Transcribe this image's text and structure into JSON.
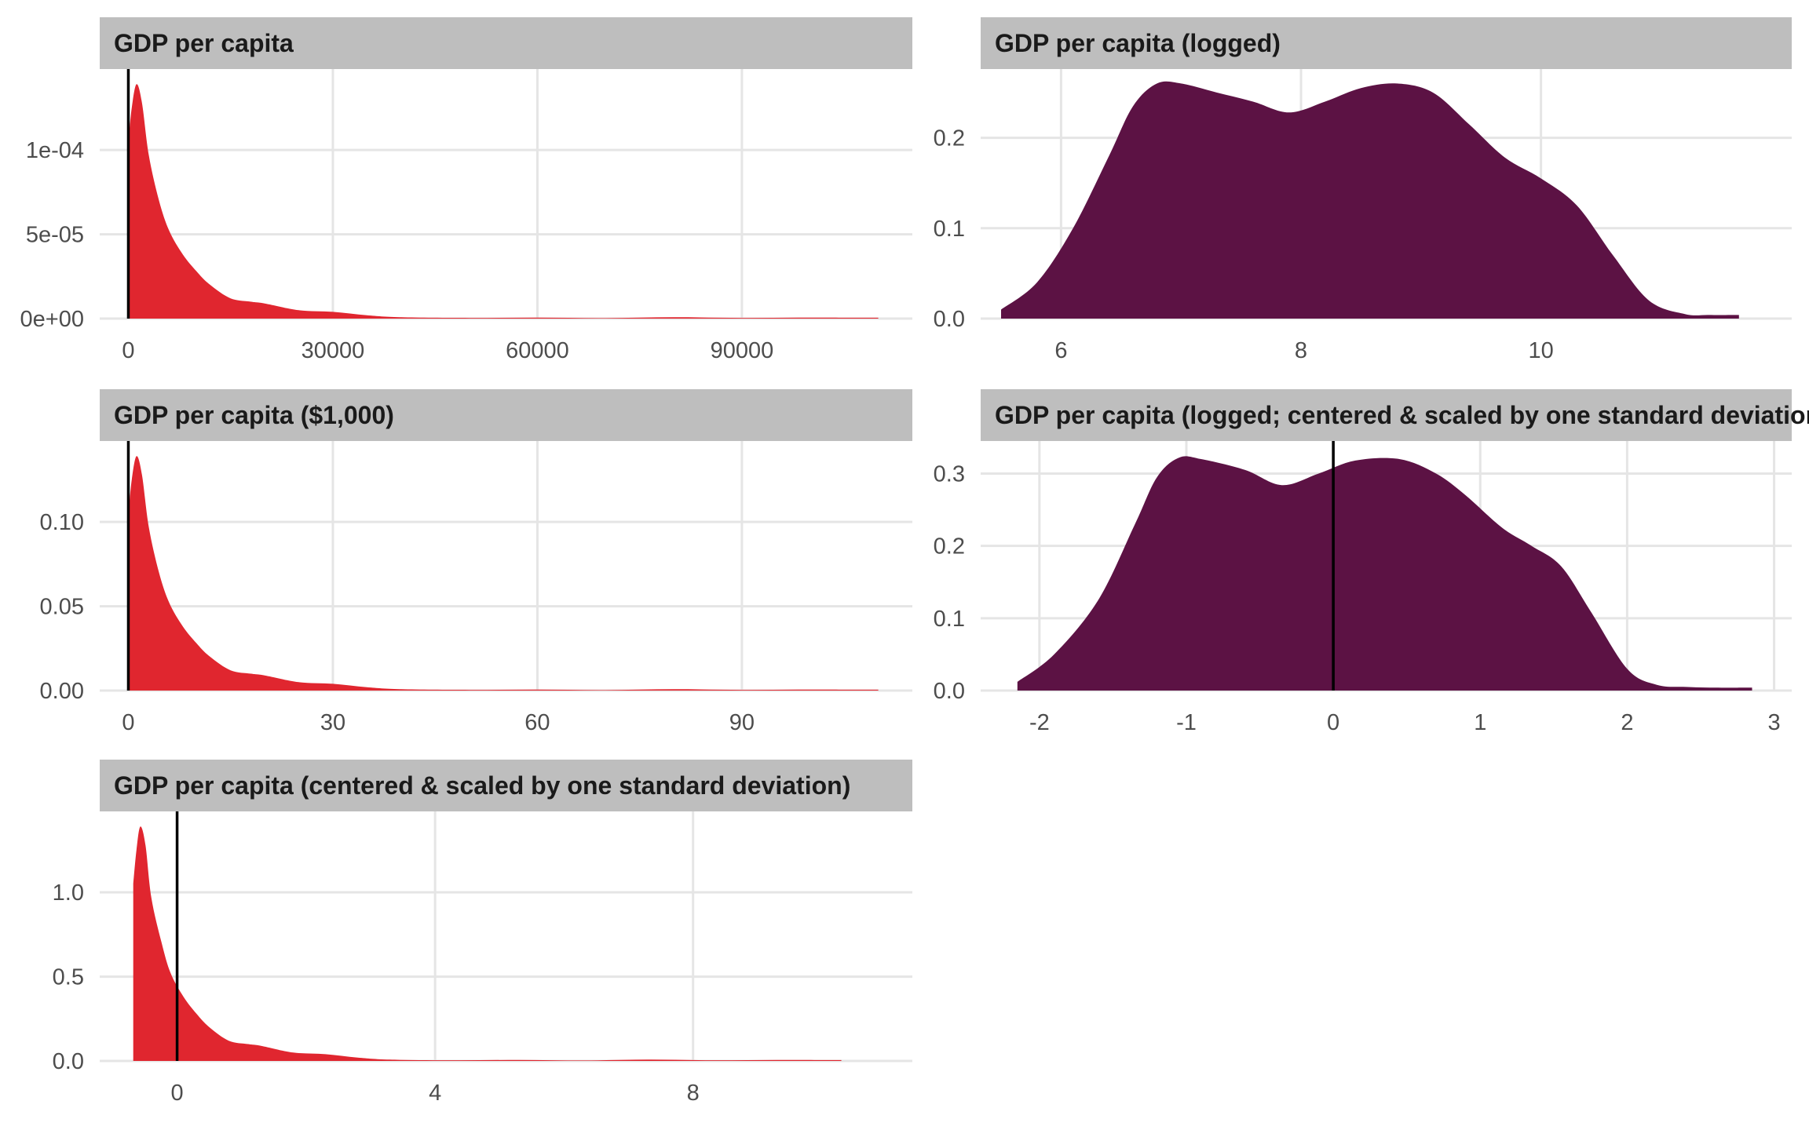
{
  "chart_data": [
    {
      "type": "area",
      "title": "GDP per capita",
      "color": "#e0262f",
      "xlim": [
        -4200,
        115000
      ],
      "ylim": [
        0,
        0.000148
      ],
      "x_ticks": [
        0,
        30000,
        60000,
        90000
      ],
      "x_tick_labels": [
        "0",
        "30000",
        "60000",
        "90000"
      ],
      "y_ticks": [
        0,
        5e-05,
        0.0001
      ],
      "y_tick_labels": [
        "0e+00",
        "5e-05",
        "1e-04"
      ],
      "vline": 0,
      "x": [
        0,
        500,
        1200,
        2000,
        3000,
        4500,
        6000,
        8000,
        10000,
        12000,
        15000,
        18000,
        20000,
        25000,
        30000,
        35000,
        40000,
        50000,
        60000,
        70000,
        80000,
        90000,
        100000,
        110000
      ],
      "y": [
        0.000105,
        0.000125,
        0.000139,
        0.000128,
        9.7e-05,
        7e-05,
        5.2e-05,
        3.8e-05,
        2.8e-05,
        2e-05,
        1.2e-05,
        1e-05,
        9e-06,
        5e-06,
        4e-06,
        2e-06,
        8e-07,
        4e-07,
        6e-07,
        3e-07,
        8e-07,
        4e-07,
        6e-07,
        5e-07
      ]
    },
    {
      "type": "area",
      "title": "GDP per capita (logged)",
      "color": "#5c1244",
      "xlim": [
        5.33,
        12.09
      ],
      "ylim": [
        0,
        0.276
      ],
      "x_ticks": [
        6,
        8,
        10
      ],
      "x_tick_labels": [
        "6",
        "8",
        "10"
      ],
      "y_ticks": [
        0,
        0.1,
        0.2
      ],
      "y_tick_labels": [
        "0.0",
        "0.1",
        "0.2"
      ],
      "x": [
        5.5,
        5.8,
        6.1,
        6.4,
        6.6,
        6.8,
        7.0,
        7.3,
        7.6,
        7.9,
        8.2,
        8.5,
        8.8,
        9.1,
        9.4,
        9.7,
        10.0,
        10.3,
        10.6,
        10.9,
        11.2,
        11.4,
        11.65
      ],
      "y": [
        0.01,
        0.04,
        0.1,
        0.18,
        0.235,
        0.26,
        0.26,
        0.25,
        0.24,
        0.228,
        0.24,
        0.255,
        0.26,
        0.25,
        0.215,
        0.178,
        0.155,
        0.125,
        0.07,
        0.02,
        0.005,
        0.004,
        0.004
      ]
    },
    {
      "type": "area",
      "title": "GDP per capita ($1,000)",
      "color": "#e0262f",
      "xlim": [
        -4.2,
        115
      ],
      "ylim": [
        0,
        0.148
      ],
      "x_ticks": [
        0,
        30,
        60,
        90
      ],
      "x_tick_labels": [
        "0",
        "30",
        "60",
        "90"
      ],
      "y_ticks": [
        0,
        0.05,
        0.1
      ],
      "y_tick_labels": [
        "0.00",
        "0.05",
        "0.10"
      ],
      "vline": 0,
      "x": [
        0,
        0.5,
        1.2,
        2,
        3,
        4.5,
        6,
        8,
        10,
        12,
        15,
        18,
        20,
        25,
        30,
        35,
        40,
        50,
        60,
        70,
        80,
        90,
        100,
        110
      ],
      "y": [
        0.105,
        0.125,
        0.139,
        0.128,
        0.097,
        0.07,
        0.052,
        0.038,
        0.028,
        0.02,
        0.012,
        0.01,
        0.009,
        0.005,
        0.004,
        0.002,
        0.0008,
        0.0004,
        0.0006,
        0.0003,
        0.0008,
        0.0004,
        0.0006,
        0.0005
      ]
    },
    {
      "type": "area",
      "title": "GDP per capita (logged; centered & scaled by one standard deviation)",
      "color": "#5c1244",
      "xlim": [
        -2.4,
        3.12
      ],
      "ylim": [
        0,
        0.345
      ],
      "x_ticks": [
        -2,
        -1,
        0,
        1,
        2,
        3
      ],
      "x_tick_labels": [
        "-2",
        "-1",
        "0",
        "1",
        "2",
        "3"
      ],
      "y_ticks": [
        0,
        0.1,
        0.2,
        0.3
      ],
      "y_tick_labels": [
        "0.0",
        "0.1",
        "0.2",
        "0.3"
      ],
      "vline": 0,
      "x": [
        -2.15,
        -1.9,
        -1.6,
        -1.35,
        -1.2,
        -1.05,
        -0.9,
        -0.6,
        -0.35,
        -0.1,
        0.15,
        0.45,
        0.7,
        0.9,
        1.15,
        1.35,
        1.55,
        1.75,
        2.0,
        2.2,
        2.4,
        2.6,
        2.85
      ],
      "y": [
        0.012,
        0.05,
        0.125,
        0.23,
        0.295,
        0.322,
        0.32,
        0.305,
        0.284,
        0.3,
        0.318,
        0.32,
        0.3,
        0.27,
        0.225,
        0.2,
        0.172,
        0.11,
        0.03,
        0.008,
        0.005,
        0.004,
        0.004
      ]
    },
    {
      "type": "area",
      "title": "GDP per capita (centered & scaled by one standard deviation)",
      "color": "#e0262f",
      "xlim": [
        -1.2,
        11.4
      ],
      "ylim": [
        0,
        1.48
      ],
      "x_ticks": [
        0,
        4,
        8
      ],
      "x_tick_labels": [
        "0",
        "4",
        "8"
      ],
      "y_ticks": [
        0,
        0.5,
        1.0
      ],
      "y_tick_labels": [
        "0.0",
        "0.5",
        "1.0"
      ],
      "vline": 0,
      "x": [
        -0.68,
        -0.63,
        -0.57,
        -0.49,
        -0.4,
        -0.24,
        -0.1,
        0.1,
        0.3,
        0.5,
        0.8,
        1.1,
        1.3,
        1.8,
        2.3,
        2.8,
        3.3,
        4.3,
        5.3,
        6.3,
        7.3,
        8.3,
        9.3,
        10.3
      ],
      "y": [
        1.05,
        1.25,
        1.39,
        1.28,
        0.97,
        0.7,
        0.52,
        0.38,
        0.28,
        0.2,
        0.12,
        0.1,
        0.09,
        0.05,
        0.04,
        0.02,
        0.008,
        0.004,
        0.006,
        0.003,
        0.008,
        0.004,
        0.006,
        0.005
      ]
    }
  ]
}
